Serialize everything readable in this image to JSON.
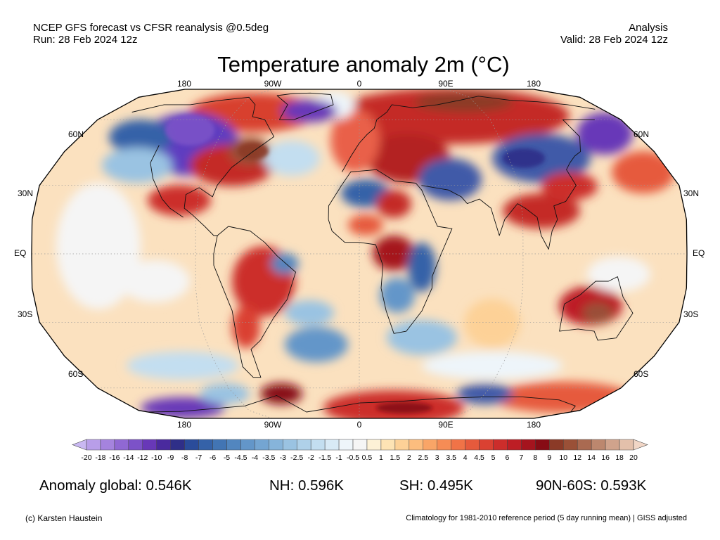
{
  "header": {
    "left_line1": "NCEP GFS forecast vs CFSR reanalysis @0.5deg",
    "left_line2": "Run: 28 Feb 2024 12z",
    "right_line1": "Analysis",
    "right_line2": "Valid: 28 Feb 2024 12z"
  },
  "title": "Temperature anomaly 2m (°C)",
  "map": {
    "projection": "Robinson",
    "lon_labels_top": [
      "180",
      "90W",
      "0",
      "90E",
      "180"
    ],
    "lon_labels_bottom": [
      "180",
      "90W",
      "0",
      "90E",
      "180"
    ],
    "lat_labels": [
      "60N",
      "30N",
      "EQ",
      "30S",
      "60S"
    ]
  },
  "colorbar": {
    "ticks": [
      "-20",
      "-18",
      "-16",
      "-14",
      "-12",
      "-10",
      "-9",
      "-8",
      "-7",
      "-6",
      "-5",
      "-4.5",
      "-4",
      "-3.5",
      "-3",
      "-2.5",
      "-2",
      "-1.5",
      "-1",
      "-0.5",
      "0.5",
      "1",
      "1.5",
      "2",
      "2.5",
      "3",
      "3.5",
      "4",
      "4.5",
      "5",
      "6",
      "7",
      "8",
      "9",
      "10",
      "12",
      "14",
      "16",
      "18",
      "20"
    ],
    "colors": [
      "#c9b8f2",
      "#b89ee9",
      "#a583de",
      "#9068d3",
      "#7c52c8",
      "#6838b8",
      "#4a2a9e",
      "#2f2f88",
      "#2a4c9a",
      "#3562a8",
      "#4275b4",
      "#5286bf",
      "#6396c9",
      "#74a5d2",
      "#86b4da",
      "#9ac3e2",
      "#afd1e9",
      "#c3def0",
      "#d8eaf6",
      "#eef5fa",
      "#f5f5f5",
      "#fdf1d6",
      "#fde3b4",
      "#fdd197",
      "#fcbd7e",
      "#f9a567",
      "#f68c55",
      "#f07347",
      "#e65a3c",
      "#da4132",
      "#cc2d2b",
      "#bd1e25",
      "#a5141e",
      "#870c15",
      "#8b3a27",
      "#9a5037",
      "#aa6a51",
      "#bc876e",
      "#d0a38c",
      "#e3c0ab",
      "#f1d6c6"
    ]
  },
  "stats": {
    "global": "Anomaly global: 0.546K",
    "nh": "NH: 0.596K",
    "sh": "SH: 0.495K",
    "arctic": "90N-60S: 0.593K"
  },
  "footer": {
    "credit": "(c) Karsten Haustein",
    "note": "Climatology for 1981-2010 reference period (5 day running mean) | GISS adjusted"
  }
}
